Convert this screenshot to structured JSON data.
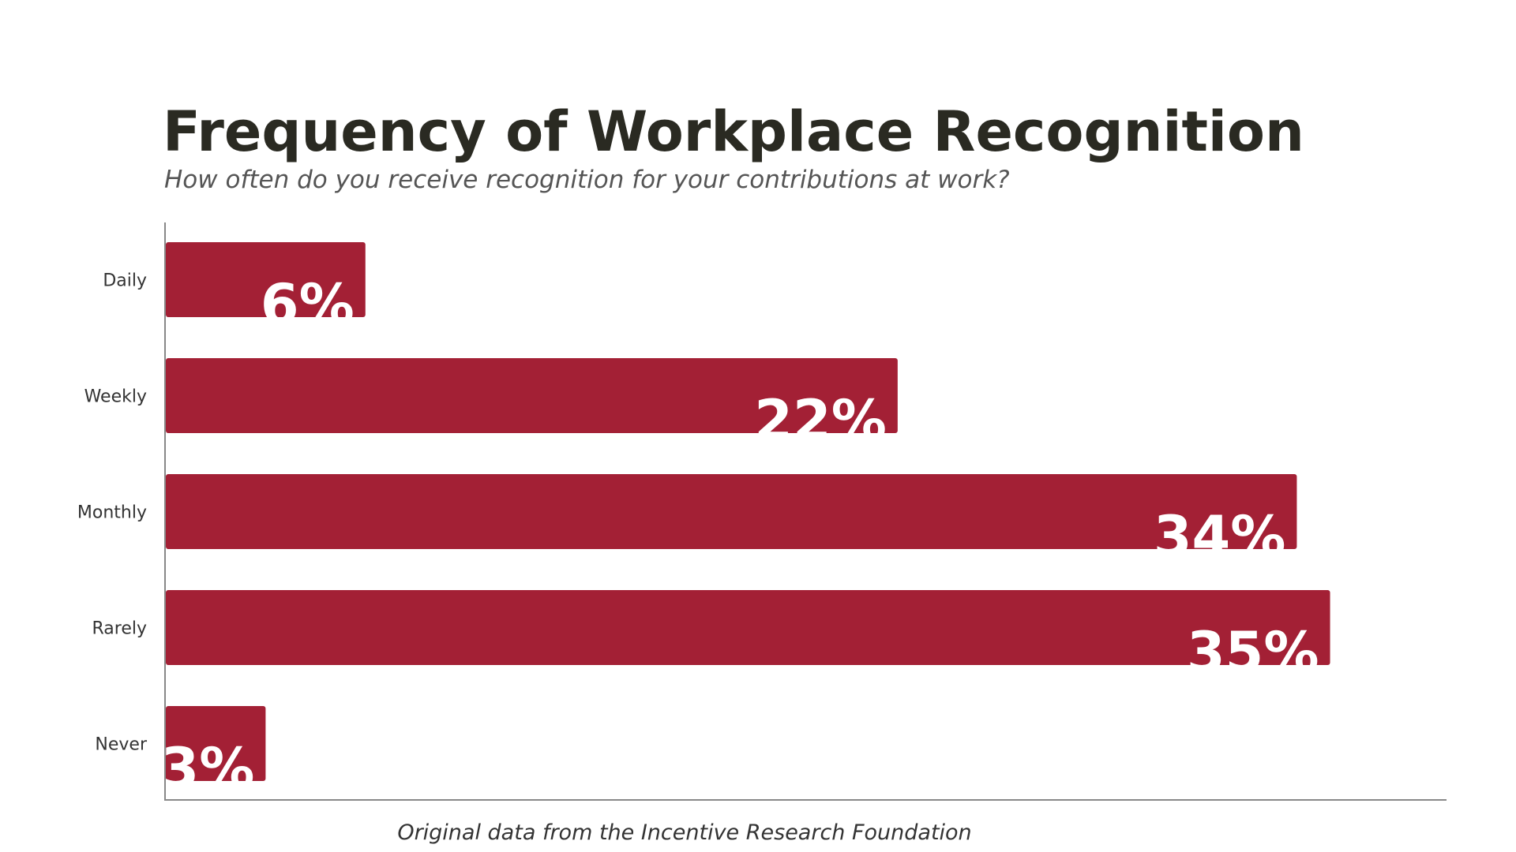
{
  "chart_data": {
    "type": "bar",
    "orientation": "horizontal",
    "title": "Frequency of Workplace Recognition",
    "subtitle": "How often do you receive recognition for your contributions at work?",
    "categories": [
      "Daily",
      "Weekly",
      "Monthly",
      "Rarely",
      "Never"
    ],
    "values": [
      6,
      22,
      34,
      35,
      3
    ],
    "data_labels": [
      "6%",
      "22%",
      "34%",
      "35%",
      "3%"
    ],
    "xlabel": "",
    "ylabel": "",
    "xlim": [
      0,
      38.5
    ],
    "grid": false,
    "bar_color": "#a32035",
    "footer": "Original data from the Incentive Research Foundation"
  }
}
